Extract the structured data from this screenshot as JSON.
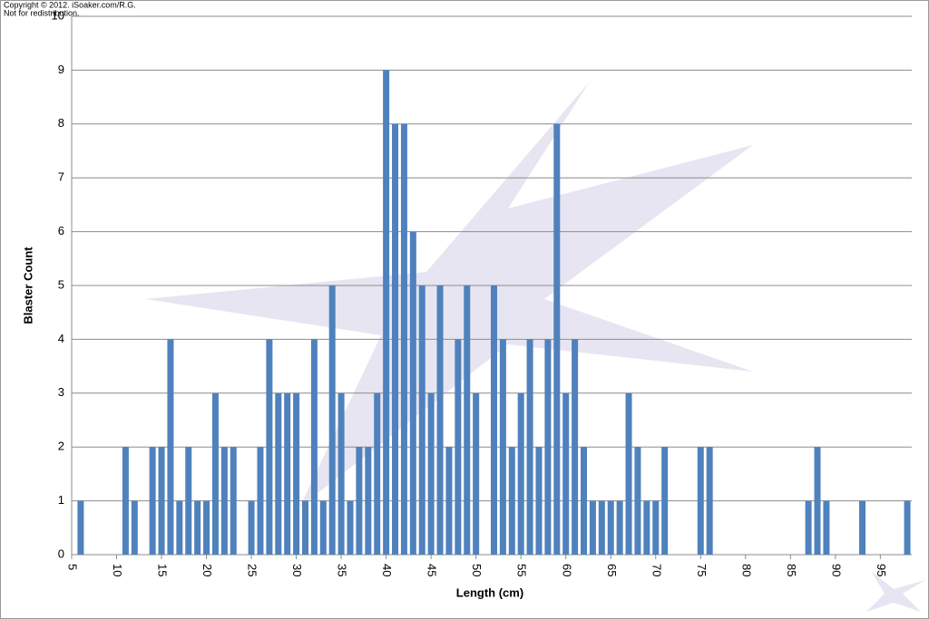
{
  "chart_data": {
    "type": "bar",
    "annotations": [
      "Copyright © 2012. iSoaker.com/R.G.",
      "Not for redistribution."
    ],
    "x_label": "Length (cm)",
    "y_label": "Blaster Count",
    "x": [
      6,
      11,
      12,
      14,
      15,
      16,
      17,
      18,
      19,
      20,
      21,
      22,
      23,
      25,
      26,
      27,
      28,
      29,
      30,
      31,
      32,
      33,
      34,
      35,
      36,
      37,
      38,
      39,
      40,
      41,
      42,
      43,
      44,
      45,
      46,
      47,
      48,
      49,
      50,
      52,
      53,
      54,
      55,
      56,
      57,
      58,
      59,
      60,
      61,
      62,
      63,
      64,
      65,
      66,
      67,
      68,
      69,
      70,
      71,
      75,
      76,
      87,
      88,
      89,
      93,
      98
    ],
    "values": [
      1,
      2,
      1,
      2,
      2,
      4,
      1,
      2,
      1,
      1,
      3,
      2,
      2,
      1,
      2,
      4,
      3,
      3,
      3,
      1,
      4,
      1,
      5,
      3,
      1,
      2,
      2,
      3,
      9,
      8,
      8,
      6,
      5,
      3,
      5,
      2,
      4,
      5,
      3,
      5,
      4,
      2,
      3,
      4,
      2,
      4,
      8,
      3,
      4,
      2,
      1,
      1,
      1,
      1,
      3,
      2,
      1,
      1,
      2,
      2,
      2,
      1,
      2,
      1,
      1,
      1
    ],
    "color": "#4f81bd",
    "xlim": [
      5,
      98.5
    ],
    "xticks": [
      5,
      10,
      15,
      20,
      25,
      30,
      35,
      40,
      45,
      50,
      55,
      60,
      65,
      70,
      75,
      80,
      85,
      90,
      95
    ],
    "ylim": [
      0,
      10
    ],
    "yticks": [
      0,
      1,
      2,
      3,
      4,
      5,
      6,
      7,
      8,
      9,
      10
    ],
    "grid": true
  }
}
